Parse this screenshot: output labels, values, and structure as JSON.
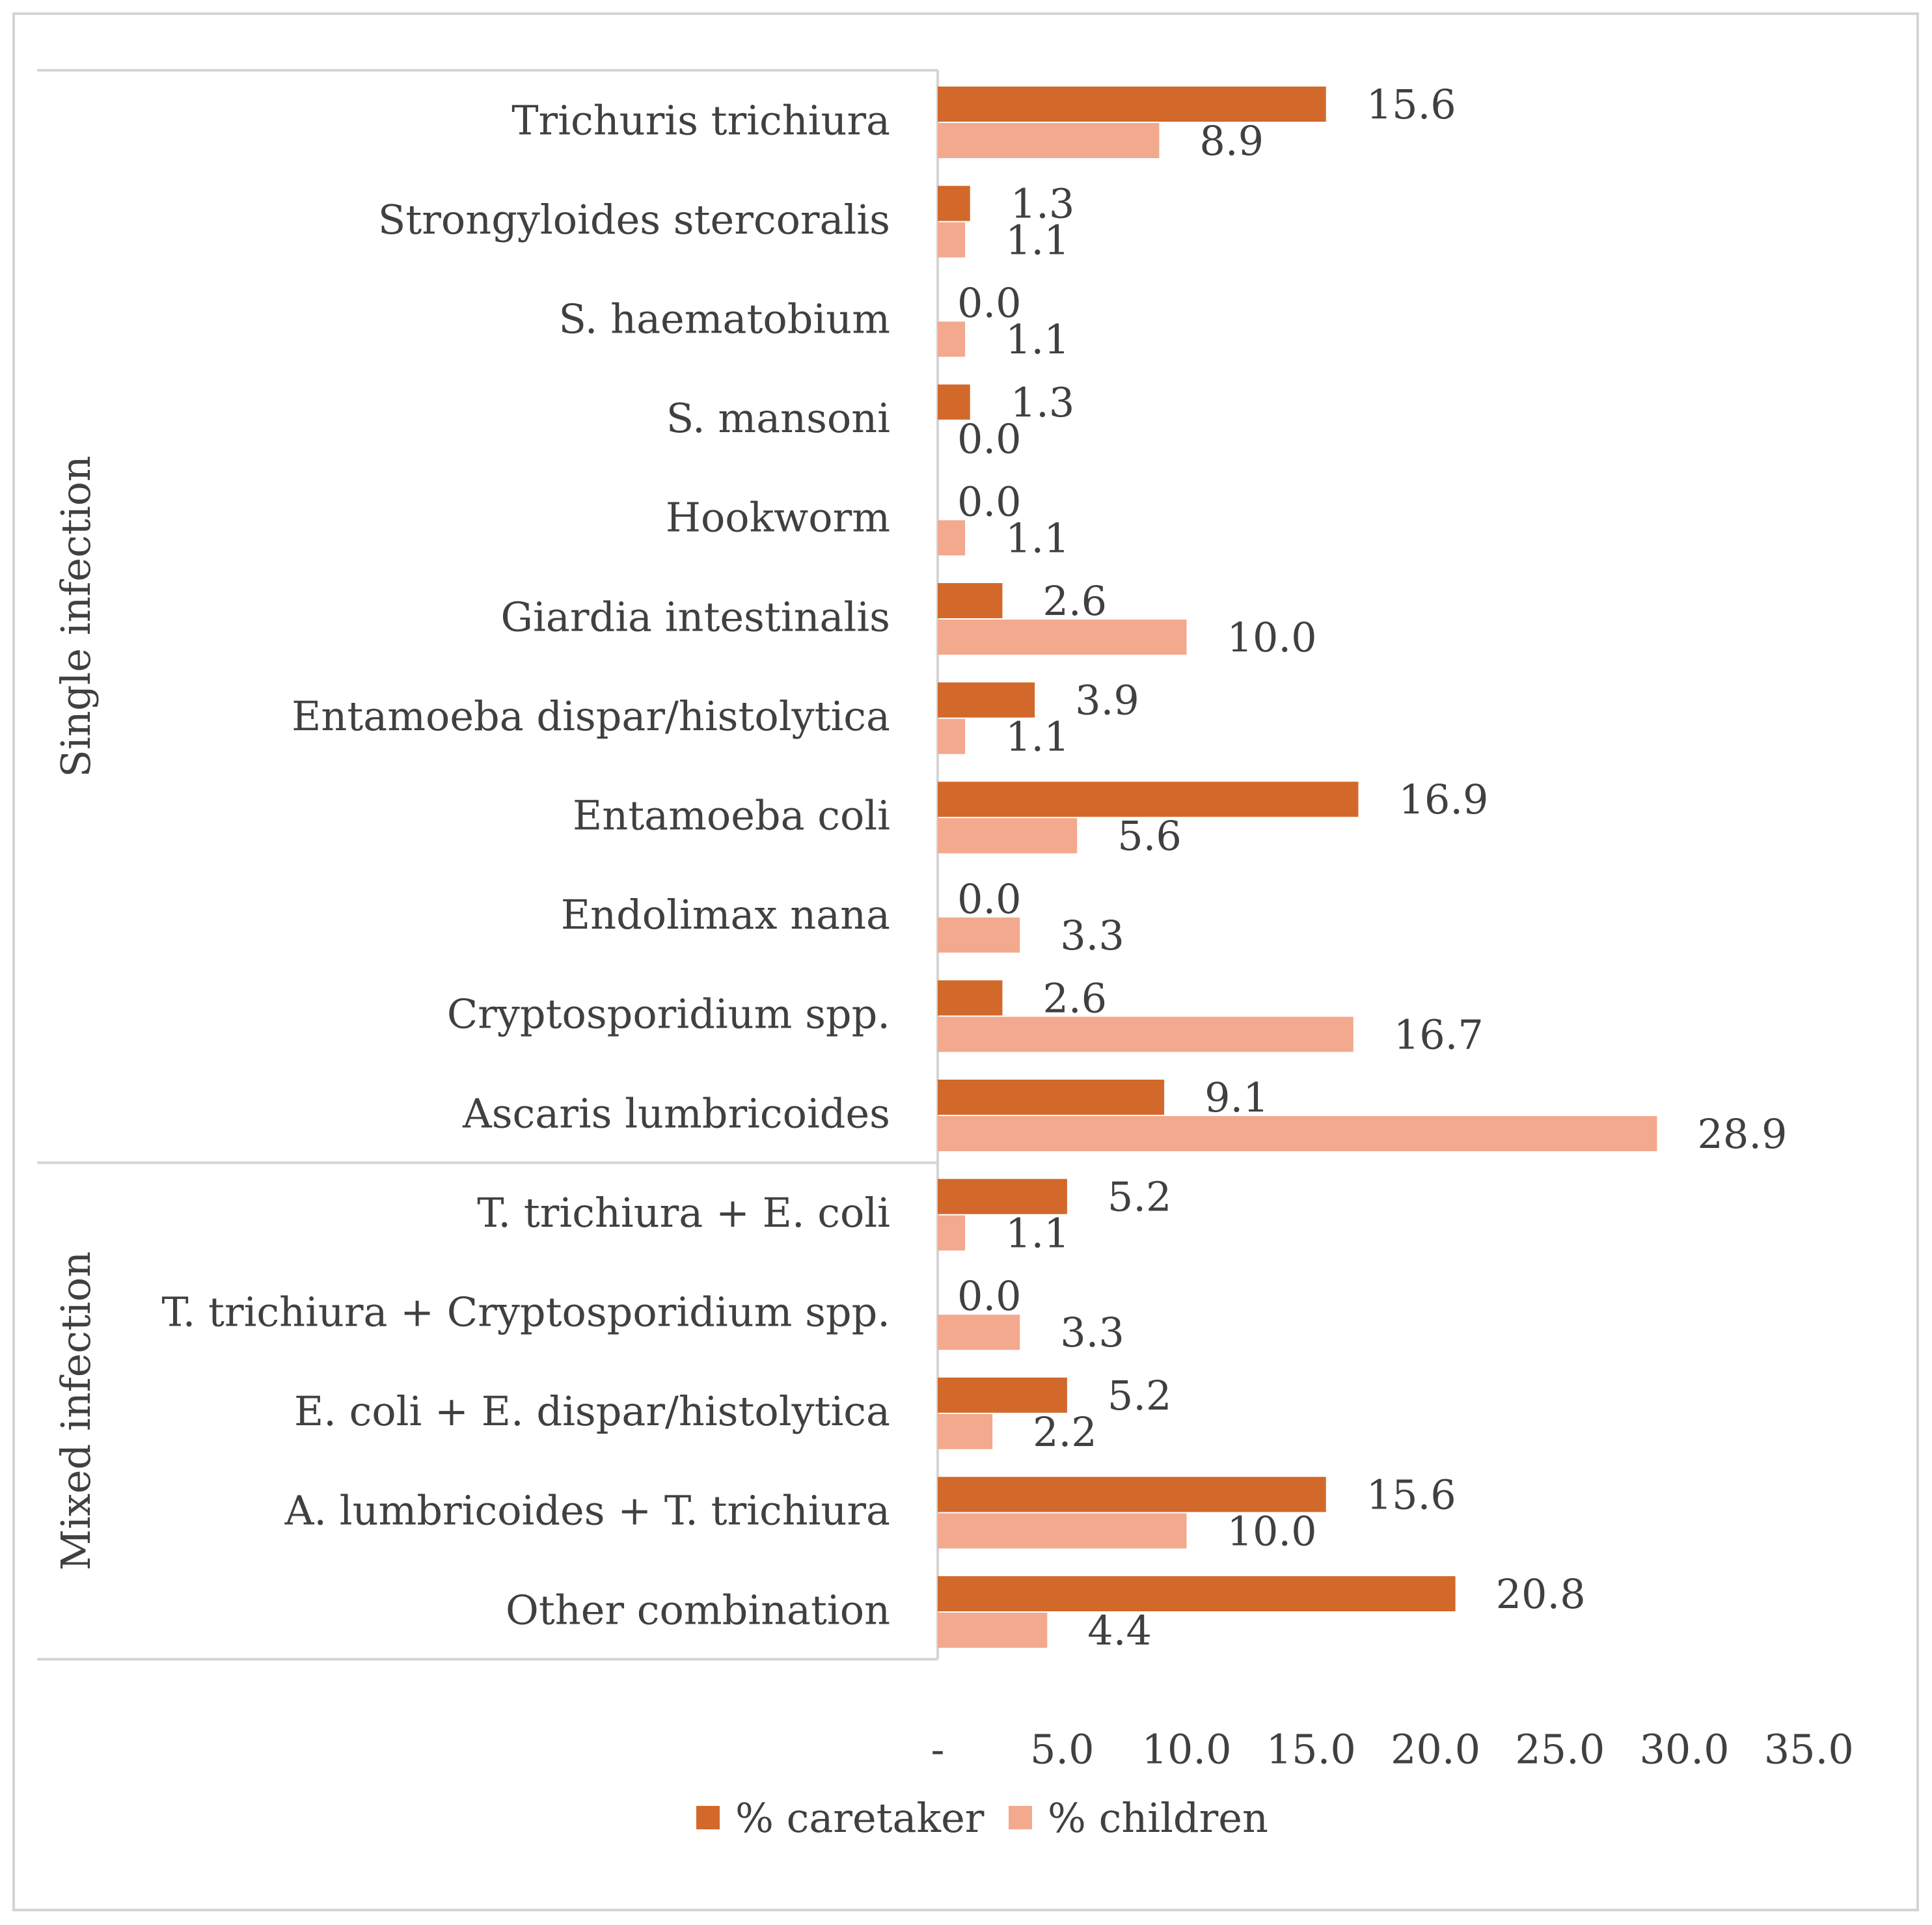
{
  "chart_data": {
    "type": "bar",
    "orientation": "horizontal",
    "title": "",
    "xlabel": "",
    "ylabel": "",
    "xlim": [
      0,
      35
    ],
    "x_ticks": [
      {
        "value": 0,
        "label": "-"
      },
      {
        "value": 5,
        "label": "5.0"
      },
      {
        "value": 10,
        "label": "10.0"
      },
      {
        "value": 15,
        "label": "15.0"
      },
      {
        "value": 20,
        "label": "20.0"
      },
      {
        "value": 25,
        "label": "25.0"
      },
      {
        "value": 30,
        "label": "30.0"
      },
      {
        "value": 35,
        "label": "35.0"
      }
    ],
    "grid": false,
    "legend_position": "bottom",
    "groups": [
      {
        "label": "Single infection",
        "count": 11
      },
      {
        "label": "Mixed infection",
        "count": 5
      }
    ],
    "categories": [
      "Trichuris trichiura",
      "Strongyloides stercoralis",
      "S. haematobium",
      "S. mansoni",
      "Hookworm",
      "Giardia intestinalis",
      "Entamoeba dispar/histolytica",
      "Entamoeba coli",
      "Endolimax nana",
      "Cryptosporidium spp.",
      "Ascaris lumbricoides",
      "T. trichiura + E. coli",
      "T. trichiura + Cryptosporidium spp.",
      "E. coli + E. dispar/histolytica",
      "A. lumbricoides + T. trichiura",
      "Other combination"
    ],
    "series": [
      {
        "name": "% caretaker",
        "color": "#D2692B",
        "values": [
          15.6,
          1.3,
          0.0,
          1.3,
          0.0,
          2.6,
          3.9,
          16.9,
          0.0,
          2.6,
          9.1,
          5.2,
          0.0,
          5.2,
          15.6,
          20.8
        ],
        "labels": [
          "15.6",
          "1.3",
          "0.0",
          "1.3",
          "0.0",
          "2.6",
          "3.9",
          "16.9",
          "0.0",
          "2.6",
          "9.1",
          "5.2",
          "0.0",
          "5.2",
          "15.6",
          "20.8"
        ]
      },
      {
        "name": "% children",
        "color": "#F2A98E",
        "values": [
          8.9,
          1.1,
          1.1,
          0.0,
          1.1,
          10.0,
          1.1,
          5.6,
          3.3,
          16.7,
          28.9,
          1.1,
          3.3,
          2.2,
          10.0,
          4.4
        ],
        "labels": [
          "8.9",
          "1.1",
          "1.1",
          "0.0",
          "1.1",
          "10.0",
          "1.1",
          "5.6",
          "3.3",
          "16.7",
          "28.9",
          "1.1",
          "3.3",
          "2.2",
          "10.0",
          "4.4"
        ]
      }
    ]
  }
}
